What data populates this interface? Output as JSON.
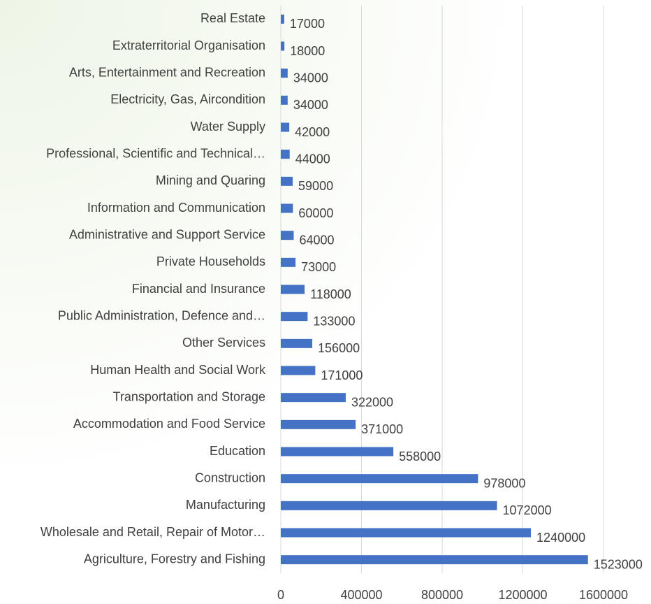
{
  "chart_data": {
    "type": "bar",
    "orientation": "horizontal",
    "categories": [
      "Real Estate",
      "Extraterritorial Organisation",
      "Arts, Entertainment and Recreation",
      "Electricity, Gas, Aircondition",
      "Water Supply",
      "Professional, Scientific and Technical…",
      "Mining and Quaring",
      "Information and Communication",
      "Administrative and Support Service",
      "Private Households",
      "Financial and Insurance",
      "Public Administration, Defence and…",
      "Other Services",
      "Human Health and Social Work",
      "Transportation and Storage",
      "Accommodation and Food Service",
      "Education",
      "Construction",
      "Manufacturing",
      "Wholesale and Retail, Repair of Motor…",
      "Agriculture, Forestry and Fishing"
    ],
    "values": [
      17000,
      18000,
      34000,
      34000,
      42000,
      44000,
      59000,
      60000,
      64000,
      73000,
      118000,
      133000,
      156000,
      171000,
      322000,
      371000,
      558000,
      978000,
      1072000,
      1240000,
      1523000
    ],
    "color": "#4472c4",
    "xlim": [
      0,
      1600000
    ],
    "xticks": [
      0,
      400000,
      800000,
      1200000,
      1600000
    ],
    "grid": true
  }
}
